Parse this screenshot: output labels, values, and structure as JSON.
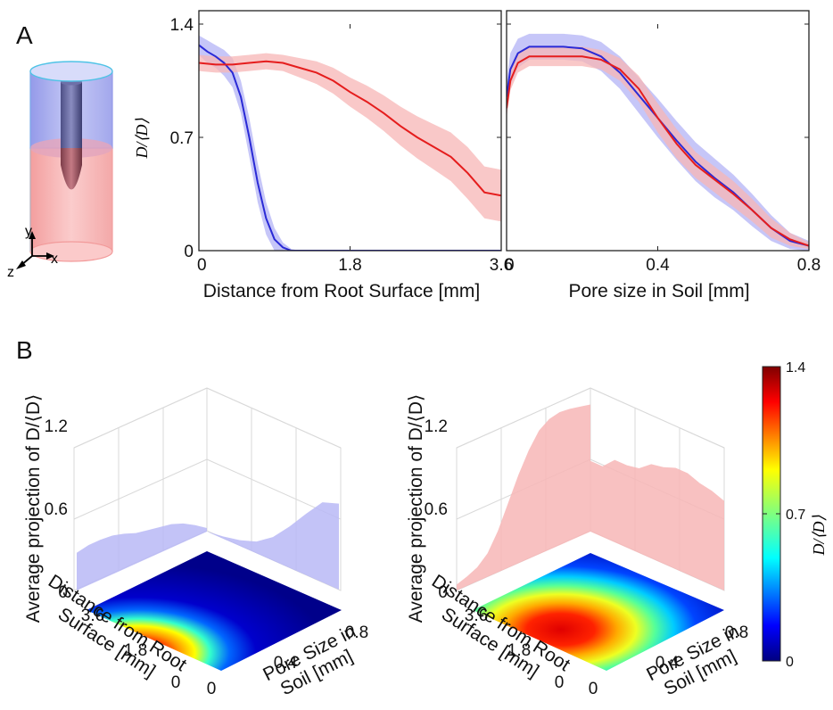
{
  "panels": {
    "a": "A",
    "b": "B"
  },
  "colors": {
    "blue": "#2a2ad6",
    "blue_band": "#b8b8f6",
    "red": "#e51d1d",
    "red_band": "#f7b6b6"
  },
  "inset": {
    "axis_y": "y",
    "axis_x": "x",
    "axis_z": "z"
  },
  "chart_data": [
    {
      "type": "line",
      "panel": "A-left",
      "xlabel": "Distance from Root Surface [mm]",
      "ylabel": "D/⟨D⟩",
      "xlim": [
        0,
        3.6
      ],
      "ylim": [
        0,
        1.4
      ],
      "xticks": [
        "0",
        "1.8",
        "3.6"
      ],
      "yticks": [
        "0",
        "0.7",
        "1.4"
      ],
      "grid": false,
      "series": [
        {
          "color": "blue",
          "x": [
            0,
            0.1,
            0.2,
            0.3,
            0.4,
            0.5,
            0.6,
            0.7,
            0.8,
            0.9,
            1.0,
            1.1,
            1.2,
            1.5,
            2.0,
            2.5,
            3.0,
            3.6
          ],
          "y": [
            1.27,
            1.23,
            1.2,
            1.16,
            1.1,
            0.95,
            0.7,
            0.42,
            0.2,
            0.07,
            0.02,
            0,
            0,
            0,
            0,
            0,
            0,
            0
          ],
          "band": [
            0.06,
            0.07,
            0.07,
            0.08,
            0.09,
            0.1,
            0.12,
            0.12,
            0.1,
            0.07,
            0.03,
            0.01,
            0,
            0,
            0,
            0,
            0,
            0
          ]
        },
        {
          "color": "red",
          "x": [
            0,
            0.2,
            0.4,
            0.6,
            0.8,
            1.0,
            1.2,
            1.4,
            1.6,
            1.8,
            2.0,
            2.2,
            2.4,
            2.6,
            2.8,
            3.0,
            3.2,
            3.4,
            3.6
          ],
          "y": [
            1.16,
            1.15,
            1.15,
            1.16,
            1.17,
            1.16,
            1.13,
            1.1,
            1.05,
            0.98,
            0.92,
            0.85,
            0.77,
            0.7,
            0.64,
            0.58,
            0.48,
            0.36,
            0.34
          ],
          "band": [
            0.05,
            0.05,
            0.05,
            0.05,
            0.05,
            0.05,
            0.06,
            0.07,
            0.08,
            0.09,
            0.1,
            0.11,
            0.12,
            0.13,
            0.14,
            0.15,
            0.16,
            0.16,
            0.16
          ]
        }
      ]
    },
    {
      "type": "line",
      "panel": "A-right",
      "xlabel": "Pore size in Soil [mm]",
      "xlim": [
        0,
        0.8
      ],
      "ylim": [
        0,
        1.4
      ],
      "xticks": [
        "0",
        "0.4",
        "0.8"
      ],
      "grid": false,
      "series": [
        {
          "color": "blue",
          "x": [
            0,
            0.01,
            0.03,
            0.06,
            0.1,
            0.15,
            0.2,
            0.25,
            0.3,
            0.35,
            0.4,
            0.45,
            0.5,
            0.55,
            0.6,
            0.65,
            0.7,
            0.75,
            0.8
          ],
          "y": [
            0.95,
            1.12,
            1.22,
            1.26,
            1.26,
            1.26,
            1.25,
            1.2,
            1.1,
            0.96,
            0.82,
            0.68,
            0.55,
            0.45,
            0.36,
            0.25,
            0.14,
            0.06,
            0.03
          ],
          "band": [
            0.1,
            0.1,
            0.09,
            0.08,
            0.08,
            0.08,
            0.08,
            0.09,
            0.1,
            0.11,
            0.12,
            0.12,
            0.12,
            0.12,
            0.11,
            0.1,
            0.08,
            0.05,
            0.03
          ]
        },
        {
          "color": "red",
          "x": [
            0,
            0.01,
            0.03,
            0.06,
            0.1,
            0.15,
            0.2,
            0.25,
            0.3,
            0.35,
            0.4,
            0.45,
            0.5,
            0.55,
            0.6,
            0.65,
            0.7,
            0.75,
            0.8
          ],
          "y": [
            0.88,
            1.05,
            1.16,
            1.2,
            1.2,
            1.2,
            1.2,
            1.18,
            1.12,
            1.0,
            0.82,
            0.66,
            0.53,
            0.44,
            0.35,
            0.25,
            0.14,
            0.07,
            0.03
          ],
          "band": [
            0.06,
            0.06,
            0.06,
            0.06,
            0.06,
            0.06,
            0.06,
            0.06,
            0.07,
            0.08,
            0.09,
            0.09,
            0.08,
            0.08,
            0.08,
            0.07,
            0.06,
            0.04,
            0.02
          ]
        }
      ]
    },
    {
      "type": "heatmap",
      "panel": "B-left",
      "zlabel": "Average projection of D/⟨D⟩",
      "zticks": [
        "0",
        "0.6",
        "1.2"
      ],
      "ylabel_lines": [
        "Distance from Root",
        "Surface [mm]"
      ],
      "yticks": [
        "0",
        "1.8",
        "3.6"
      ],
      "xlabel_lines": [
        "Pore Size in",
        "Soil [mm]"
      ],
      "xticks": [
        "0",
        "0.4",
        "0.8"
      ],
      "hotspot": {
        "distance_mm": 0.2,
        "pore_mm": 0.15,
        "peak": 1.3
      },
      "projection_distance": [
        0.32,
        0.34,
        0.34,
        0.33,
        0.3,
        0.26,
        0.24,
        0.22,
        0.2,
        0.16,
        0.1,
        0.03
      ],
      "projection_pore": [
        0.0,
        0.02,
        0.05,
        0.1,
        0.2,
        0.35,
        0.52,
        0.68,
        0.73
      ]
    },
    {
      "type": "heatmap",
      "panel": "B-right",
      "zlabel": "Average projection of D/⟨D⟩",
      "zticks": [
        "0",
        "0.6",
        "1.2"
      ],
      "ylabel_lines": [
        "Distance from Root",
        "Surface [mm]"
      ],
      "yticks": [
        "0",
        "1.8",
        "3.6"
      ],
      "xlabel_lines": [
        "Pore Size in",
        "Soil [mm]"
      ],
      "xticks": [
        "0",
        "0.4",
        "0.8"
      ],
      "hotspot": {
        "distance_mm": 1.2,
        "pore_mm": 0.3,
        "peak": 1.3
      },
      "projection_distance": [
        0.05,
        0.08,
        0.12,
        0.2,
        0.35,
        0.55,
        0.75,
        0.92,
        1.05,
        1.11,
        1.13,
        1.12,
        1.1,
        1.08
      ],
      "projection_pore": [
        0.6,
        0.6,
        0.7,
        0.7,
        0.72,
        0.8,
        0.82,
        0.86,
        0.86,
        0.82,
        0.8,
        0.76
      ]
    }
  ],
  "colorbar": {
    "label": "D/⟨D⟩",
    "ticks": [
      "0",
      "0.7",
      "1.4"
    ],
    "range": [
      0,
      1.4
    ],
    "colormap": "jet"
  }
}
